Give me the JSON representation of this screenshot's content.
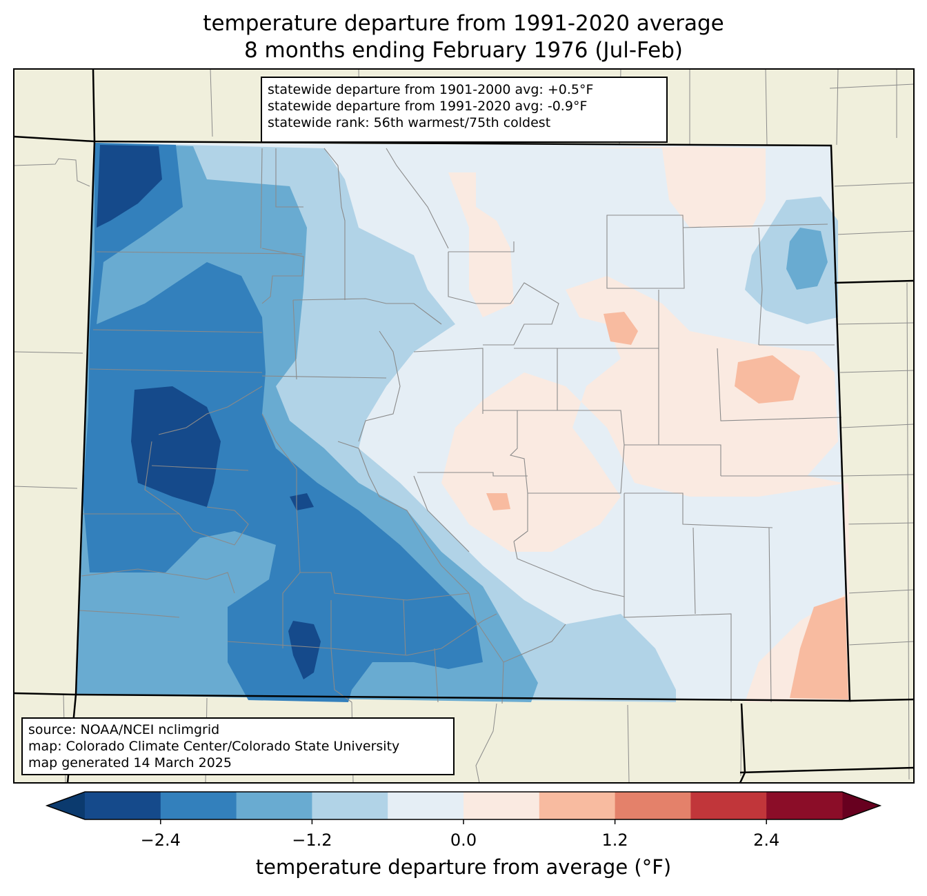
{
  "title": {
    "line1": "temperature departure from 1991-2020 average",
    "line2": "8 months ending February 1976 (Jul-Feb)"
  },
  "stats": {
    "line1": "statewide departure from 1901-2000 avg: +0.5°F",
    "line2": "statewide departure from 1991-2020 avg: -0.9°F",
    "line3": "statewide rank: 56th warmest/75th coldest"
  },
  "source": {
    "line1": "source: NOAA/NCEI nclimgrid",
    "line2": "map: Colorado Climate Center/Colorado State University",
    "line3": "map generated 14 March 2025"
  },
  "colorbar": {
    "label": "temperature departure from average (°F)",
    "min": -3.0,
    "max": 3.0,
    "step": 0.6,
    "ticks": [
      {
        "value": -2.4,
        "label": "−2.4"
      },
      {
        "value": -1.2,
        "label": "−1.2"
      },
      {
        "value": 0.0,
        "label": "0.0"
      },
      {
        "value": 1.2,
        "label": "1.2"
      },
      {
        "value": 2.4,
        "label": "2.4"
      }
    ],
    "under_color": "#0b3a6e",
    "over_color": "#67001f",
    "colors": [
      "#154a8b",
      "#3380bc",
      "#69abd1",
      "#b1d3e7",
      "#e5eef5",
      "#faeae1",
      "#f8bba0",
      "#e4816a",
      "#c1363a",
      "#8b0d28"
    ]
  },
  "map_colors": {
    "land": "#f0efdc",
    "county_lines": "#8a8a8a",
    "state_lines": "#000000"
  }
}
